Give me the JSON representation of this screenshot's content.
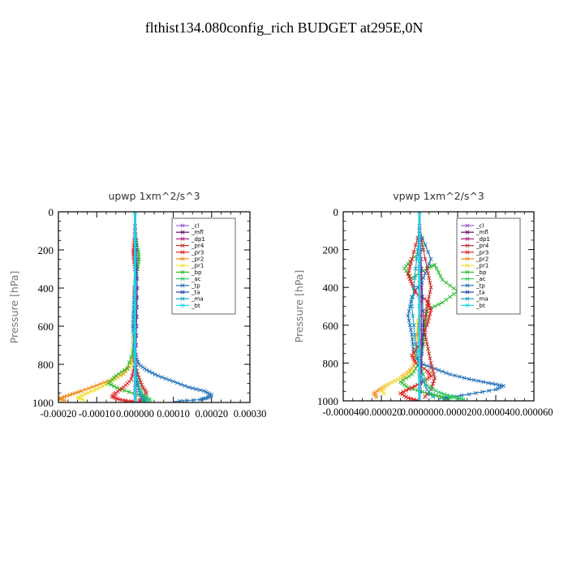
{
  "figure_title": "flthist134.080config_rich  BUDGET at295E,0N",
  "colors": {
    "cl": "#9b59d0",
    "mfl": "#6a0d6a",
    "dp1": "#b0207a",
    "pr4": "#c0302a",
    "pr3": "#e02020",
    "pr2": "#f08a1a",
    "pr1": "#f2e23a",
    "bp": "#2fb82f",
    "ac": "#33cc66",
    "tp": "#1f6fb5",
    "ta": "#1f3fa8",
    "ma": "#1aa0c8",
    "bt": "#18d8e8"
  },
  "chart_data": [
    {
      "type": "line",
      "title": "upwp   1xm^2/s^3",
      "ylabel": "Pressure [hPa]",
      "xlabel": "",
      "ylim": [
        1000,
        0
      ],
      "xlim": [
        -0.0002,
        0.0003
      ],
      "x_ticks": [
        "-0.00020",
        "-0.00010",
        "0.000000",
        "0.00010",
        "0.00020",
        "0.00030"
      ],
      "y_ticks": [
        "0",
        "200",
        "400",
        "600",
        "800",
        "1000"
      ],
      "legend_position": "top-right",
      "legend": [
        "_cl",
        "_mfl",
        "_dp1",
        "_pr4",
        "_pr3",
        "_pr2",
        "_pr1",
        "_bp",
        "_ac",
        "_tp",
        "_ta",
        "_ma",
        "_bt"
      ],
      "series": [
        {
          "name": "_tp",
          "key": "tp",
          "x": [
            0,
            2e-06,
            3e-06,
            -2e-06,
            -4e-06,
            -6e-06,
            -4e-06,
            0,
            1e-05,
            3e-05,
            6e-05,
            0.0001,
            0.00014,
            0.00018,
            0.0002,
            0.00019,
            0.00017,
            0.0001
          ],
          "y": [
            100,
            200,
            300,
            400,
            500,
            600,
            700,
            750,
            800,
            830,
            860,
            890,
            920,
            940,
            960,
            975,
            985,
            995
          ]
        },
        {
          "name": "_pr2",
          "key": "pr2",
          "x": [
            0,
            0,
            0,
            0,
            -5e-06,
            -1e-05,
            -3e-05,
            -6e-05,
            -0.0001,
            -0.00014,
            -0.00017,
            -0.0002,
            -0.00018
          ],
          "y": [
            100,
            300,
            500,
            700,
            760,
            800,
            850,
            880,
            910,
            940,
            960,
            980,
            990
          ]
        },
        {
          "name": "_pr1",
          "key": "pr1",
          "x": [
            0,
            0,
            -1e-05,
            -4e-05,
            -7e-05,
            -0.0001,
            -0.00013,
            -0.00015,
            -0.00013
          ],
          "y": [
            100,
            500,
            800,
            860,
            900,
            930,
            955,
            975,
            990
          ]
        },
        {
          "name": "_bp",
          "key": "bp",
          "x": [
            0,
            8e-06,
            1e-05,
            6e-06,
            0,
            0,
            -2e-05,
            -5e-05,
            -7e-05,
            -4e-05,
            1e-05,
            3e-05,
            1e-05
          ],
          "y": [
            100,
            200,
            250,
            300,
            400,
            700,
            820,
            860,
            900,
            930,
            960,
            980,
            995
          ]
        },
        {
          "name": "_pr3",
          "key": "pr3",
          "x": [
            0,
            -5e-06,
            -3e-06,
            0,
            0,
            -1e-05,
            -3e-05,
            -5e-05,
            -6e-05,
            -4e-05,
            -1e-05,
            1e-05
          ],
          "y": [
            100,
            200,
            250,
            300,
            800,
            880,
            920,
            950,
            970,
            985,
            995,
            1000
          ]
        },
        {
          "name": "_pr4",
          "key": "pr4",
          "x": [
            0,
            0,
            1e-05,
            2e-05,
            3e-05,
            2e-05,
            1e-05
          ],
          "y": [
            100,
            800,
            870,
            920,
            950,
            980,
            995
          ]
        },
        {
          "name": "_ac",
          "key": "ac",
          "x": [
            0,
            0,
            1e-05,
            2e-05,
            4e-05,
            3e-05
          ],
          "y": [
            100,
            850,
            920,
            960,
            985,
            998
          ]
        },
        {
          "name": "_ma",
          "key": "ma",
          "x": [
            0,
            2e-06,
            -3e-06,
            -4e-06,
            0,
            5e-06,
            1e-05,
            2e-05,
            3e-05
          ],
          "y": [
            100,
            300,
            500,
            700,
            800,
            880,
            940,
            980,
            995
          ]
        },
        {
          "name": "_ta",
          "key": "ta",
          "x": [
            0,
            3e-06,
            6e-06,
            4e-06,
            2e-06,
            1e-06
          ],
          "y": [
            100,
            200,
            400,
            600,
            800,
            1000
          ]
        },
        {
          "name": "_dp1",
          "key": "dp1",
          "x": [
            0,
            2e-06,
            3e-06,
            2e-06,
            1e-06,
            1e-06
          ],
          "y": [
            100,
            300,
            500,
            700,
            900,
            1000
          ]
        },
        {
          "name": "_mfl",
          "key": "mfl",
          "x": [
            0,
            0,
            0,
            0
          ],
          "y": [
            0,
            300,
            700,
            1000
          ]
        },
        {
          "name": "_cl",
          "key": "cl",
          "x": [
            0,
            0,
            0,
            0
          ],
          "y": [
            0,
            300,
            700,
            1000
          ]
        },
        {
          "name": "_bt",
          "key": "bt",
          "x": [
            0,
            0,
            0
          ],
          "y": [
            0,
            500,
            1000
          ]
        }
      ]
    },
    {
      "type": "line",
      "title": "vpwp   1xm^2/s^3",
      "ylabel": "Pressure [hPa]",
      "xlabel": "",
      "ylim": [
        1000,
        0
      ],
      "xlim": [
        -4e-05,
        6e-05
      ],
      "x_ticks": [
        "-0.000040",
        "-0.000020",
        "0.000000",
        "0.000020",
        "0.000040",
        "0.000060"
      ],
      "y_ticks": [
        "0",
        "200",
        "400",
        "600",
        "800",
        "1000"
      ],
      "legend_position": "top-right",
      "legend": [
        "_cl",
        "_mfl",
        "_dp1",
        "_pr4",
        "_pr3",
        "_pr2",
        "_pr1",
        "_bp",
        "_ac",
        "_tp",
        "_ta",
        "_ma",
        "_bt"
      ],
      "series": [
        {
          "name": "_bp",
          "key": "bp",
          "x": [
            0,
            2e-06,
            -4e-06,
            -8e-06,
            -4e-06,
            4e-06,
            8e-06,
            1.2e-05,
            2e-05,
            1.2e-05,
            4e-06,
            3e-06,
            2e-06,
            0,
            -4e-06,
            -1e-05,
            -6e-06,
            4e-06,
            1e-05,
            1.6e-05,
            1.2e-05
          ],
          "y": [
            100,
            200,
            250,
            300,
            350,
            300,
            280,
            360,
            420,
            480,
            520,
            600,
            700,
            800,
            860,
            900,
            930,
            960,
            975,
            985,
            995
          ]
        },
        {
          "name": "_tp",
          "key": "tp",
          "x": [
            0,
            6e-06,
            2e-06,
            -4e-06,
            -6e-06,
            -4e-06,
            -3e-06,
            0,
            8e-06,
            1.6e-05,
            2.6e-05,
            3.6e-05,
            4.4e-05,
            4e-05,
            2.6e-05,
            1e-05
          ],
          "y": [
            100,
            250,
            350,
            450,
            550,
            650,
            750,
            800,
            830,
            860,
            885,
            905,
            920,
            940,
            965,
            990
          ]
        },
        {
          "name": "_pr2",
          "key": "pr2",
          "x": [
            0,
            0,
            -2e-06,
            -6e-06,
            -1e-05,
            -1.6e-05,
            -2e-05,
            -2.4e-05,
            -2.2e-05
          ],
          "y": [
            100,
            500,
            800,
            850,
            880,
            910,
            935,
            960,
            985
          ]
        },
        {
          "name": "_pr1",
          "key": "pr1",
          "x": [
            0,
            0,
            -4e-06,
            -1e-05,
            -1.6e-05,
            -2e-05,
            -1.8e-05
          ],
          "y": [
            100,
            500,
            840,
            880,
            910,
            940,
            970
          ]
        },
        {
          "name": "_pr3",
          "key": "pr3",
          "x": [
            0,
            -4e-06,
            -6e-06,
            -4e-06,
            -2e-06,
            4e-06,
            6e-06,
            4e-06,
            0,
            -4e-06,
            -2e-06,
            4e-06,
            6e-06,
            2e-06,
            -4e-06,
            -1e-05,
            -6e-06,
            0
          ],
          "y": [
            100,
            250,
            330,
            380,
            430,
            470,
            520,
            600,
            700,
            760,
            800,
            840,
            870,
            900,
            930,
            960,
            985,
            1000
          ]
        },
        {
          "name": "_pr4",
          "key": "pr4",
          "x": [
            0,
            4e-06,
            6e-06,
            4e-06,
            2e-06,
            4e-06,
            6e-06,
            8e-06,
            6e-06,
            2e-06
          ],
          "y": [
            100,
            300,
            400,
            500,
            600,
            700,
            800,
            880,
            940,
            990
          ]
        },
        {
          "name": "_ac",
          "key": "ac",
          "x": [
            0,
            0,
            4e-06,
            1e-05,
            1.6e-05,
            2e-05,
            2.4e-05
          ],
          "y": [
            100,
            800,
            920,
            955,
            975,
            985,
            995
          ]
        },
        {
          "name": "_ma",
          "key": "ma",
          "x": [
            0,
            -2e-06,
            -4e-06,
            -2e-06,
            0,
            4e-06,
            8e-06
          ],
          "y": [
            100,
            300,
            500,
            700,
            850,
            940,
            990
          ]
        },
        {
          "name": "_ta",
          "key": "ta",
          "x": [
            0,
            1e-06,
            2e-06,
            1e-06,
            0
          ],
          "y": [
            100,
            300,
            600,
            800,
            1000
          ]
        },
        {
          "name": "_dp1",
          "key": "dp1",
          "x": [
            0,
            1e-06,
            1e-06,
            0
          ],
          "y": [
            100,
            400,
            700,
            1000
          ]
        },
        {
          "name": "_mfl",
          "key": "mfl",
          "x": [
            0,
            0,
            0,
            0
          ],
          "y": [
            0,
            300,
            700,
            1000
          ]
        },
        {
          "name": "_cl",
          "key": "cl",
          "x": [
            0,
            0,
            0,
            0
          ],
          "y": [
            0,
            300,
            700,
            1000
          ]
        },
        {
          "name": "_bt",
          "key": "bt",
          "x": [
            0,
            0,
            0
          ],
          "y": [
            0,
            500,
            1000
          ]
        }
      ]
    }
  ]
}
